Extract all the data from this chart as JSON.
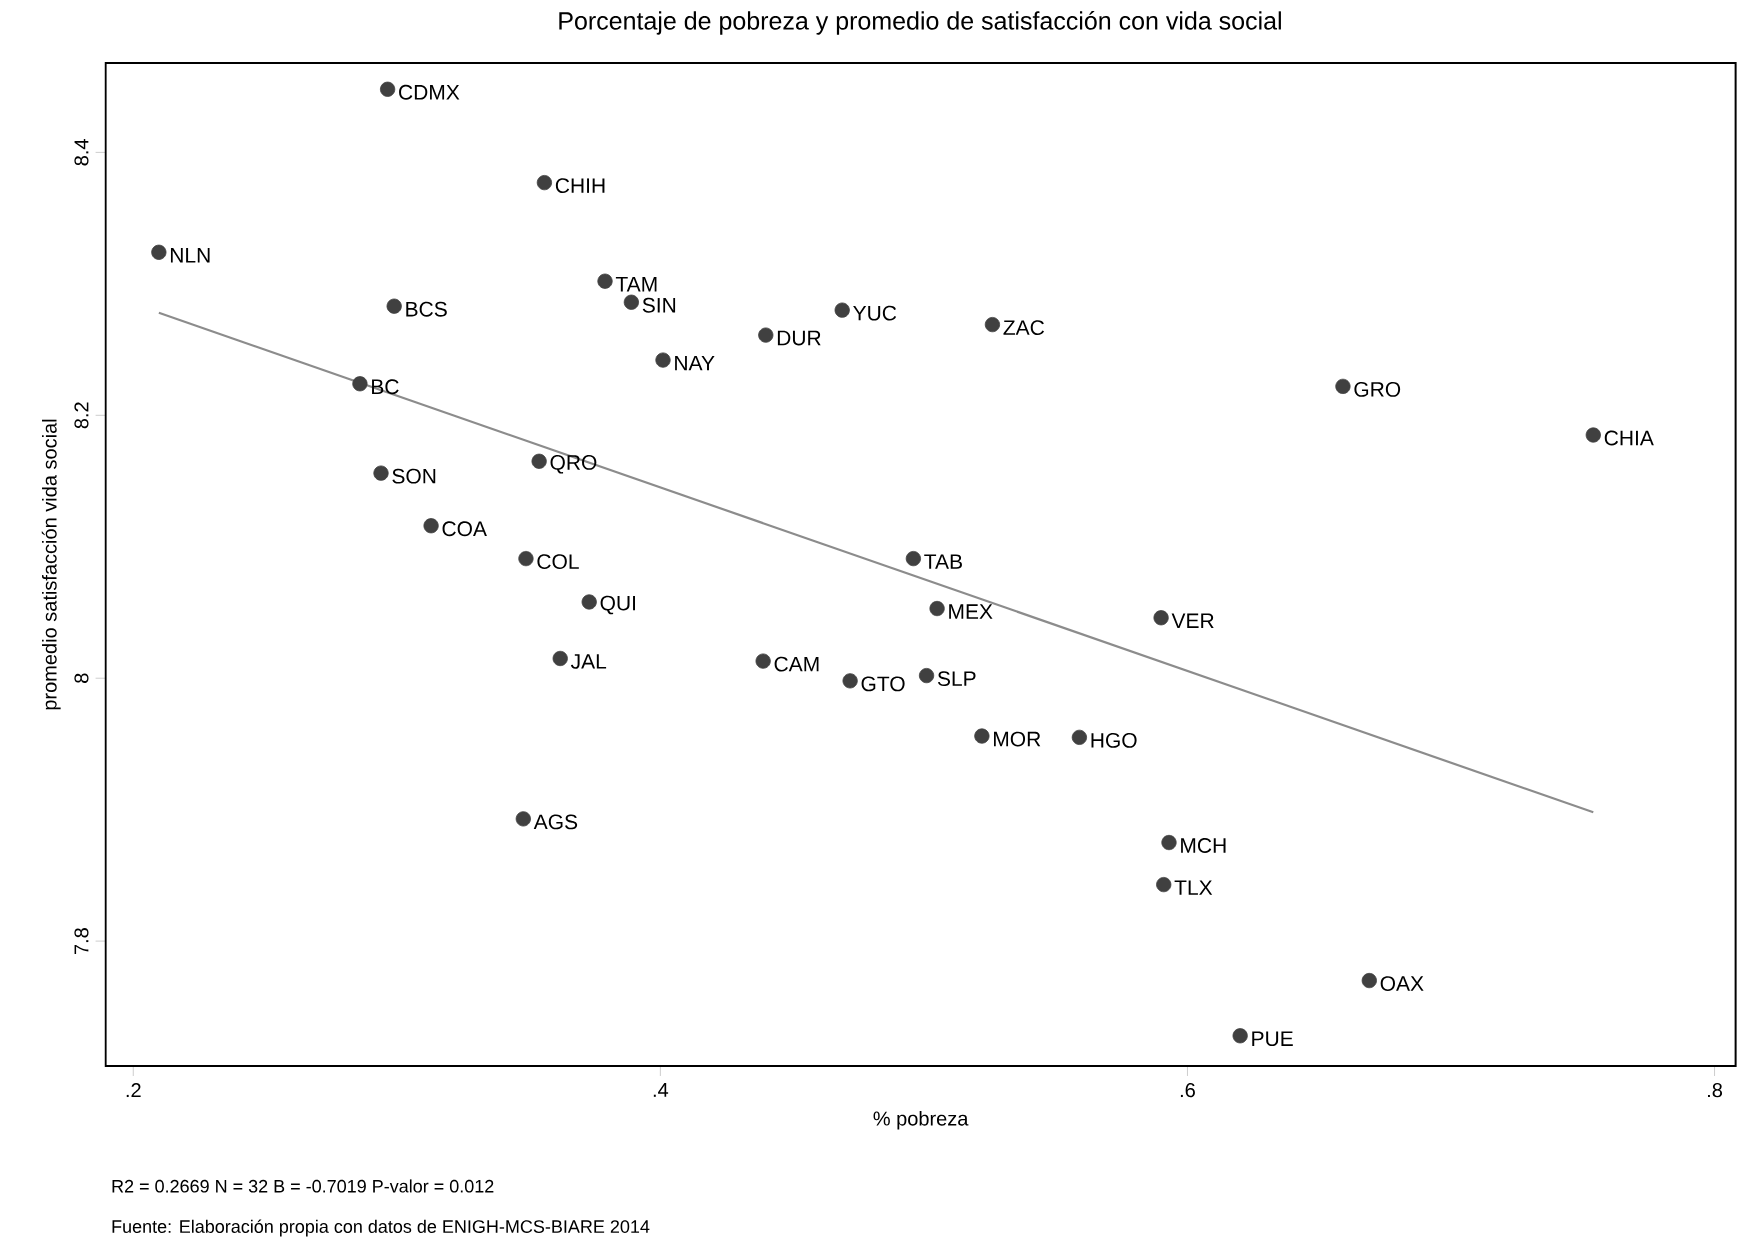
{
  "chart_data": {
    "type": "scatter",
    "title": "Porcentaje de pobreza y promedio de satisfacción con vida social",
    "xlabel": "% pobreza",
    "ylabel": "promedio satisfacción vida social",
    "xlim": [
      0.1895,
      0.808
    ],
    "ylim": [
      7.705,
      8.468
    ],
    "xticks": [
      {
        "value": 0.2,
        "label": ".2"
      },
      {
        "value": 0.4,
        "label": ".4"
      },
      {
        "value": 0.6,
        "label": ".6"
      },
      {
        "value": 0.8,
        "label": ".8"
      }
    ],
    "yticks": [
      7.8,
      8,
      8.2,
      8.4
    ],
    "marker": "circle",
    "series": [
      {
        "color": "#404040",
        "x": [
          0.2965,
          0.356,
          0.2097,
          0.379,
          0.389,
          0.299,
          0.469,
          0.526,
          0.44,
          0.401,
          0.286,
          0.659,
          0.754,
          0.354,
          0.294,
          0.313,
          0.349,
          0.496,
          0.373,
          0.505,
          0.59,
          0.362,
          0.439,
          0.501,
          0.472,
          0.522,
          0.559,
          0.348,
          0.593,
          0.591,
          0.669,
          0.62
        ],
        "values": [
          8.448,
          8.377,
          8.324,
          8.302,
          8.286,
          8.283,
          8.28,
          8.269,
          8.261,
          8.242,
          8.224,
          8.222,
          8.185,
          8.165,
          8.156,
          8.116,
          8.091,
          8.091,
          8.058,
          8.053,
          8.046,
          8.015,
          8.013,
          8.002,
          7.998,
          7.956,
          7.955,
          7.893,
          7.875,
          7.843,
          7.77,
          7.728
        ]
      },
      {
        "type": "line",
        "marker": "none",
        "color": "#8c8c8c",
        "x": [
          0.2097,
          0.754
        ],
        "values": [
          8.278,
          7.898
        ]
      }
    ],
    "annotations": [
      {
        "text": "CDMX",
        "x": 0.2965,
        "y": 8.448
      },
      {
        "text": "CHIH",
        "x": 0.356,
        "y": 8.377
      },
      {
        "text": "NLN",
        "x": 0.2097,
        "y": 8.324
      },
      {
        "text": "TAM",
        "x": 0.379,
        "y": 8.302
      },
      {
        "text": "SIN",
        "x": 0.389,
        "y": 8.286
      },
      {
        "text": "BCS",
        "x": 0.299,
        "y": 8.283
      },
      {
        "text": "YUC",
        "x": 0.469,
        "y": 8.28
      },
      {
        "text": "ZAC",
        "x": 0.526,
        "y": 8.269
      },
      {
        "text": "DUR",
        "x": 0.44,
        "y": 8.261
      },
      {
        "text": "NAY",
        "x": 0.401,
        "y": 8.242
      },
      {
        "text": "BC",
        "x": 0.286,
        "y": 8.224
      },
      {
        "text": "GRO",
        "x": 0.659,
        "y": 8.222
      },
      {
        "text": "CHIA",
        "x": 0.754,
        "y": 8.185
      },
      {
        "text": "QRO",
        "x": 0.354,
        "y": 8.165
      },
      {
        "text": "SON",
        "x": 0.294,
        "y": 8.156
      },
      {
        "text": "COA",
        "x": 0.313,
        "y": 8.116
      },
      {
        "text": "COL",
        "x": 0.349,
        "y": 8.091
      },
      {
        "text": "TAB",
        "x": 0.496,
        "y": 8.091
      },
      {
        "text": "QUI",
        "x": 0.373,
        "y": 8.058
      },
      {
        "text": "MEX",
        "x": 0.505,
        "y": 8.053
      },
      {
        "text": "VER",
        "x": 0.59,
        "y": 8.046
      },
      {
        "text": "JAL",
        "x": 0.362,
        "y": 8.015
      },
      {
        "text": "CAM",
        "x": 0.439,
        "y": 8.013
      },
      {
        "text": "SLP",
        "x": 0.501,
        "y": 8.002
      },
      {
        "text": "GTO",
        "x": 0.472,
        "y": 7.998
      },
      {
        "text": "MOR",
        "x": 0.522,
        "y": 7.956
      },
      {
        "text": "HGO",
        "x": 0.559,
        "y": 7.955
      },
      {
        "text": "AGS",
        "x": 0.348,
        "y": 7.893
      },
      {
        "text": "MCH",
        "x": 0.593,
        "y": 7.875
      },
      {
        "text": "TLX",
        "x": 0.591,
        "y": 7.843
      },
      {
        "text": "OAX",
        "x": 0.669,
        "y": 7.77
      },
      {
        "text": "PUE",
        "x": 0.62,
        "y": 7.728
      },
      "R2 = 0.2669 N = 32 B = -0.7019 P-valor = 0.012",
      "Fuente: Elaboración propia con datos de ENIGH-MCS-BIARE 2014"
    ]
  }
}
